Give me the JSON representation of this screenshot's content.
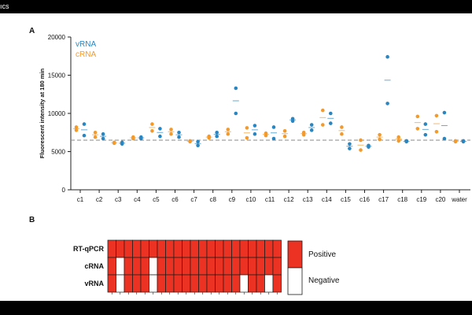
{
  "top_fragment": "ıcs",
  "panel_a": {
    "letter": "A",
    "chart_data": {
      "type": "scatter",
      "ylabel": "Fluorescent intensity at 180 min",
      "xlabel": "",
      "ylim": [
        0,
        20000
      ],
      "yticks": [
        0,
        5000,
        10000,
        15000,
        20000
      ],
      "threshold": 6500,
      "categories": [
        "c1",
        "c2",
        "c3",
        "c4",
        "c5",
        "c6",
        "c7",
        "c8",
        "c9",
        "c10",
        "c11",
        "c12",
        "c13",
        "c14",
        "c15",
        "c16",
        "c17",
        "c18",
        "c19",
        "c20",
        "water"
      ],
      "series": [
        {
          "name": "vRNA",
          "color": "#2a86c0",
          "values": [
            [
              8600,
              7100
            ],
            [
              7300,
              6700
            ],
            [
              6200,
              6000
            ],
            [
              6900,
              6700
            ],
            [
              8000,
              7000
            ],
            [
              7500,
              6900
            ],
            [
              6300,
              5800
            ],
            [
              7500,
              7000
            ],
            [
              13300,
              10000
            ],
            [
              8400,
              7300
            ],
            [
              8200,
              6700
            ],
            [
              9300,
              9000
            ],
            [
              8500,
              7800
            ],
            [
              10000,
              8700
            ],
            [
              6000,
              5400
            ],
            [
              5800,
              5600
            ],
            [
              17400,
              11300
            ],
            [
              6400,
              6300
            ],
            [
              8600,
              7200
            ],
            [
              10100,
              6700
            ],
            [
              6300,
              6400
            ]
          ]
        },
        {
          "name": "cRNA",
          "color": "#f39a2b",
          "values": [
            [
              8200,
              7800
            ],
            [
              7500,
              6900
            ],
            [
              6200,
              6100
            ],
            [
              6900,
              6700
            ],
            [
              8600,
              7700
            ],
            [
              7900,
              7300
            ],
            [
              6400,
              6300
            ],
            [
              7000,
              6800
            ],
            [
              7900,
              7300
            ],
            [
              8100,
              6800
            ],
            [
              7400,
              7100
            ],
            [
              7700,
              7000
            ],
            [
              7500,
              7200
            ],
            [
              10400,
              8500
            ],
            [
              8200,
              7300
            ],
            [
              6500,
              5200
            ],
            [
              7200,
              6600
            ],
            [
              6900,
              6400
            ],
            [
              9600,
              8000
            ],
            [
              9700,
              7600
            ],
            [
              6400,
              6300
            ]
          ]
        }
      ]
    }
  },
  "panel_b": {
    "letter": "B",
    "rows": [
      "RT-qPCR",
      "cRNA",
      "vRNA"
    ],
    "grid": [
      [
        1,
        1,
        1,
        1,
        1,
        1,
        1,
        1,
        1,
        1,
        1,
        1,
        1,
        1,
        1,
        1,
        1,
        1,
        1,
        1,
        1
      ],
      [
        1,
        0,
        1,
        1,
        1,
        0,
        1,
        1,
        1,
        1,
        1,
        1,
        1,
        1,
        1,
        1,
        1,
        1,
        1,
        1,
        1
      ],
      [
        1,
        0,
        1,
        1,
        1,
        0,
        1,
        1,
        1,
        1,
        1,
        1,
        1,
        1,
        1,
        1,
        0,
        1,
        1,
        0,
        1
      ]
    ],
    "legend": {
      "positive": "Positive",
      "negative": "Negative",
      "positive_color": "#ec3323",
      "negative_color": "#ffffff"
    }
  }
}
